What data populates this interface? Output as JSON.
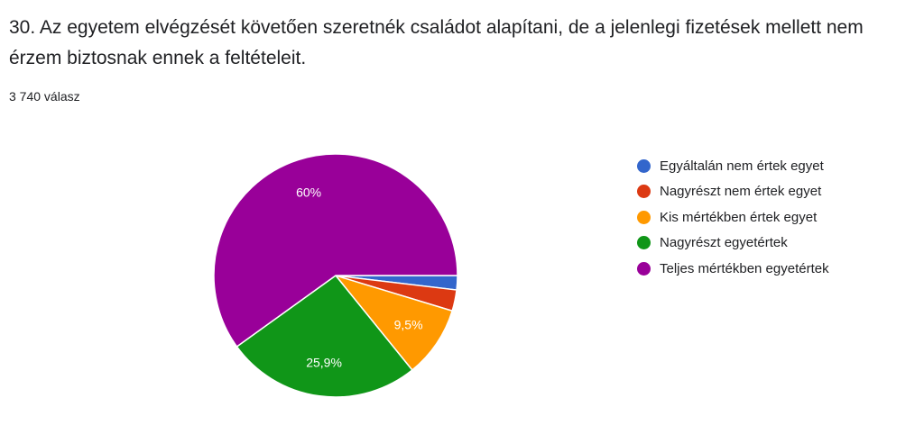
{
  "question": {
    "title": "30. Az egyetem elvégzését követően szeretnék családot alapítani, de a jelenlegi fizetések mellett nem érzem biztosnak ennek a feltételeit.",
    "response_count": "3 740 válasz"
  },
  "chart_data": {
    "type": "pie",
    "title": "",
    "legend_position": "right",
    "slices": [
      {
        "name": "Egyáltalán nem értek egyet",
        "value": 1.9,
        "label": "",
        "color": "#3366cc"
      },
      {
        "name": "Nagyrészt nem értek egyet",
        "value": 2.8,
        "label": "",
        "color": "#dc3912"
      },
      {
        "name": "Kis mértékben értek egyet",
        "value": 9.5,
        "label": "9,5%",
        "color": "#ff9900"
      },
      {
        "name": "Nagyrészt egyetértek",
        "value": 25.9,
        "label": "25,9%",
        "color": "#109618"
      },
      {
        "name": "Teljes mértékben egyetértek",
        "value": 60,
        "label": "60%",
        "color": "#990099"
      }
    ]
  }
}
